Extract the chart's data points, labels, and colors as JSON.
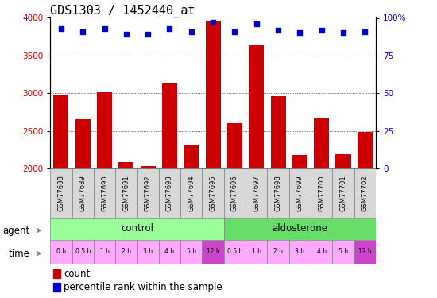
{
  "title": "GDS1303 / 1452440_at",
  "samples": [
    "GSM77688",
    "GSM77689",
    "GSM77690",
    "GSM77691",
    "GSM77692",
    "GSM77693",
    "GSM77694",
    "GSM77695",
    "GSM77696",
    "GSM77697",
    "GSM77698",
    "GSM77699",
    "GSM77700",
    "GSM77701",
    "GSM77702"
  ],
  "counts": [
    2980,
    2650,
    3010,
    2080,
    2030,
    3140,
    2300,
    3960,
    2600,
    3640,
    2960,
    2180,
    2670,
    2190,
    2480
  ],
  "percentiles": [
    93,
    91,
    93,
    89,
    89,
    93,
    91,
    97,
    91,
    96,
    92,
    90,
    92,
    90,
    91
  ],
  "ylim_left": [
    2000,
    4000
  ],
  "ylim_right": [
    0,
    100
  ],
  "yticks_left": [
    2000,
    2500,
    3000,
    3500,
    4000
  ],
  "yticks_right": [
    0,
    25,
    50,
    75,
    100
  ],
  "bar_color": "#cc0000",
  "dot_color": "#0000cc",
  "agent_colors": [
    "#99ff99",
    "#66dd66"
  ],
  "time_labels": [
    "0 h",
    "0.5 h",
    "1 h",
    "2 h",
    "3 h",
    "4 h",
    "5 h",
    "12 h",
    "0.5 h",
    "1 h",
    "2 h",
    "3 h",
    "4 h",
    "5 h",
    "12 h"
  ],
  "time_colors": [
    "#ffaaff",
    "#ffaaff",
    "#ffaaff",
    "#ffaaff",
    "#ffaaff",
    "#ffaaff",
    "#ffaaff",
    "#cc44cc",
    "#ffaaff",
    "#ffaaff",
    "#ffaaff",
    "#ffaaff",
    "#ffaaff",
    "#ffaaff",
    "#cc44cc"
  ],
  "legend_count_color": "#cc0000",
  "legend_pct_color": "#0000cc",
  "grid_color": "#000000",
  "title_fontsize": 11,
  "tick_fontsize": 7.5,
  "label_fontsize": 8.5,
  "bar_bottom": 2000
}
